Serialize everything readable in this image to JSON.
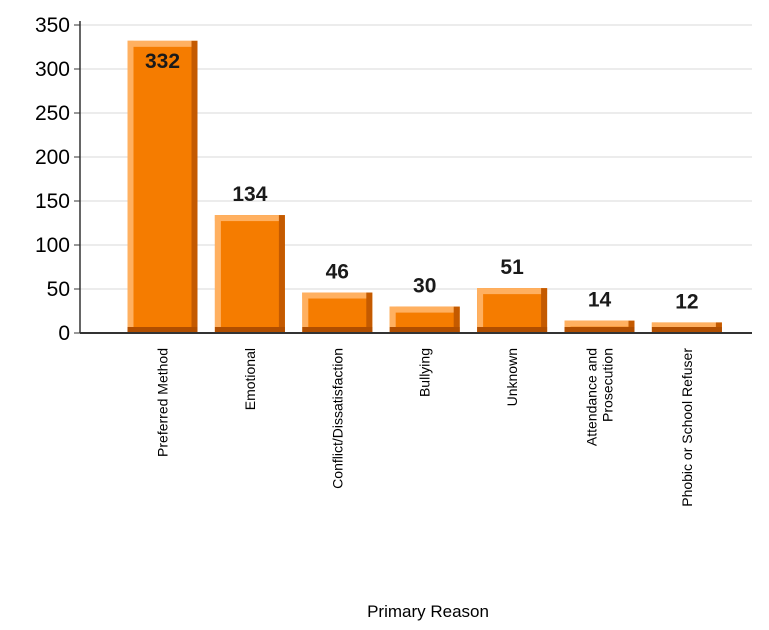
{
  "chart_data": {
    "type": "bar",
    "categories": [
      "Preferred Method",
      "Emotional",
      "Conflict/Dissatisfaction",
      "Bullying",
      "Unknown",
      "Attendance and|Prosecution",
      "Phobic or School Refuser"
    ],
    "values": [
      332,
      134,
      46,
      30,
      51,
      14,
      12
    ],
    "xlabel": "Primary Reason",
    "ylabel": "",
    "ylim": [
      0,
      350
    ],
    "yticks": [
      0,
      50,
      100,
      150,
      200,
      250,
      300,
      350
    ],
    "grid": true,
    "legend": "none",
    "colors": {
      "bar_front": "#f57c00",
      "bar_highlight": "#ffb060",
      "bar_side": "#c45a00",
      "bar_bottom": "#b04e00",
      "grid": "#d9d9d9",
      "axis": "#333333"
    }
  }
}
